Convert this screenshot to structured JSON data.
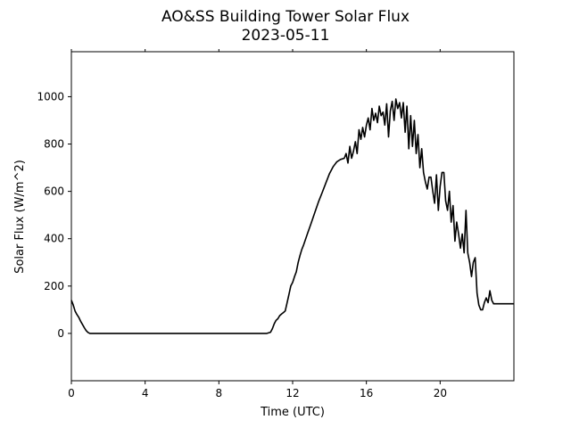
{
  "chart_data": {
    "type": "line",
    "title": "AO&SS Building Tower Solar Flux",
    "subtitle": "2023-05-11",
    "xlabel": "Time (UTC)",
    "ylabel": "Solar Flux (W/m^2)",
    "xlim": [
      0,
      24
    ],
    "ylim": [
      -200,
      1190
    ],
    "xticks": [
      0,
      4,
      8,
      12,
      16,
      20
    ],
    "yticks": [
      0,
      200,
      400,
      600,
      800,
      1000
    ],
    "grid": false,
    "legend": "none",
    "line_color": "#000000",
    "series": [
      {
        "x": [
          0,
          0.1,
          0.2,
          0.3,
          0.4,
          0.5,
          0.6,
          0.7,
          0.8,
          0.9,
          1.0,
          1.1,
          1.2,
          2,
          4,
          6,
          8,
          10,
          10.6,
          10.8,
          10.9,
          11.0,
          11.1,
          11.2,
          11.3,
          11.4,
          11.5,
          11.6,
          11.7,
          11.8,
          11.9,
          12.0,
          12.1,
          12.2,
          12.3,
          12.4,
          12.5,
          12.6,
          12.8,
          13.0,
          13.2,
          13.4,
          13.6,
          13.8,
          14.0,
          14.2,
          14.4,
          14.6,
          14.8,
          14.9,
          15.0,
          15.1,
          15.2,
          15.3,
          15.4,
          15.5,
          15.6,
          15.7,
          15.8,
          15.9,
          16.0,
          16.1,
          16.2,
          16.3,
          16.4,
          16.5,
          16.6,
          16.7,
          16.8,
          16.9,
          17.0,
          17.1,
          17.2,
          17.3,
          17.4,
          17.5,
          17.6,
          17.7,
          17.8,
          17.9,
          18.0,
          18.1,
          18.2,
          18.3,
          18.4,
          18.5,
          18.6,
          18.7,
          18.8,
          18.9,
          19.0,
          19.1,
          19.2,
          19.3,
          19.4,
          19.5,
          19.6,
          19.7,
          19.8,
          19.9,
          20.0,
          20.1,
          20.2,
          20.3,
          20.4,
          20.5,
          20.6,
          20.7,
          20.8,
          20.9,
          21.0,
          21.1,
          21.2,
          21.3,
          21.4,
          21.5,
          21.6,
          21.7,
          21.8,
          21.9,
          22.0,
          22.1,
          22.2,
          22.3,
          22.4,
          22.5,
          22.6,
          22.7,
          22.8,
          22.9,
          23.0,
          23.1,
          23.2,
          23.3,
          23.4,
          23.5,
          23.6,
          23.7,
          23.8,
          23.9,
          24.0
        ],
        "values": [
          140,
          120,
          95,
          80,
          68,
          52,
          38,
          24,
          12,
          4,
          0,
          0,
          0,
          0,
          0,
          0,
          0,
          0,
          0,
          5,
          20,
          40,
          55,
          62,
          75,
          82,
          88,
          95,
          130,
          165,
          200,
          215,
          240,
          260,
          300,
          330,
          355,
          375,
          420,
          465,
          510,
          555,
          595,
          635,
          675,
          705,
          725,
          735,
          740,
          760,
          720,
          790,
          740,
          770,
          810,
          760,
          860,
          820,
          870,
          830,
          880,
          910,
          860,
          950,
          900,
          930,
          890,
          960,
          920,
          935,
          880,
          970,
          830,
          940,
          980,
          900,
          990,
          950,
          975,
          910,
          975,
          850,
          960,
          780,
          920,
          790,
          900,
          760,
          840,
          700,
          780,
          680,
          640,
          610,
          660,
          660,
          600,
          550,
          670,
          520,
          620,
          680,
          680,
          560,
          520,
          600,
          470,
          540,
          390,
          470,
          420,
          360,
          420,
          340,
          520,
          340,
          300,
          240,
          300,
          320,
          170,
          120,
          100,
          100,
          130,
          150,
          130,
          180,
          140,
          125,
          125,
          125,
          125,
          125,
          125,
          125,
          125,
          125,
          125,
          125,
          125
        ]
      }
    ]
  }
}
